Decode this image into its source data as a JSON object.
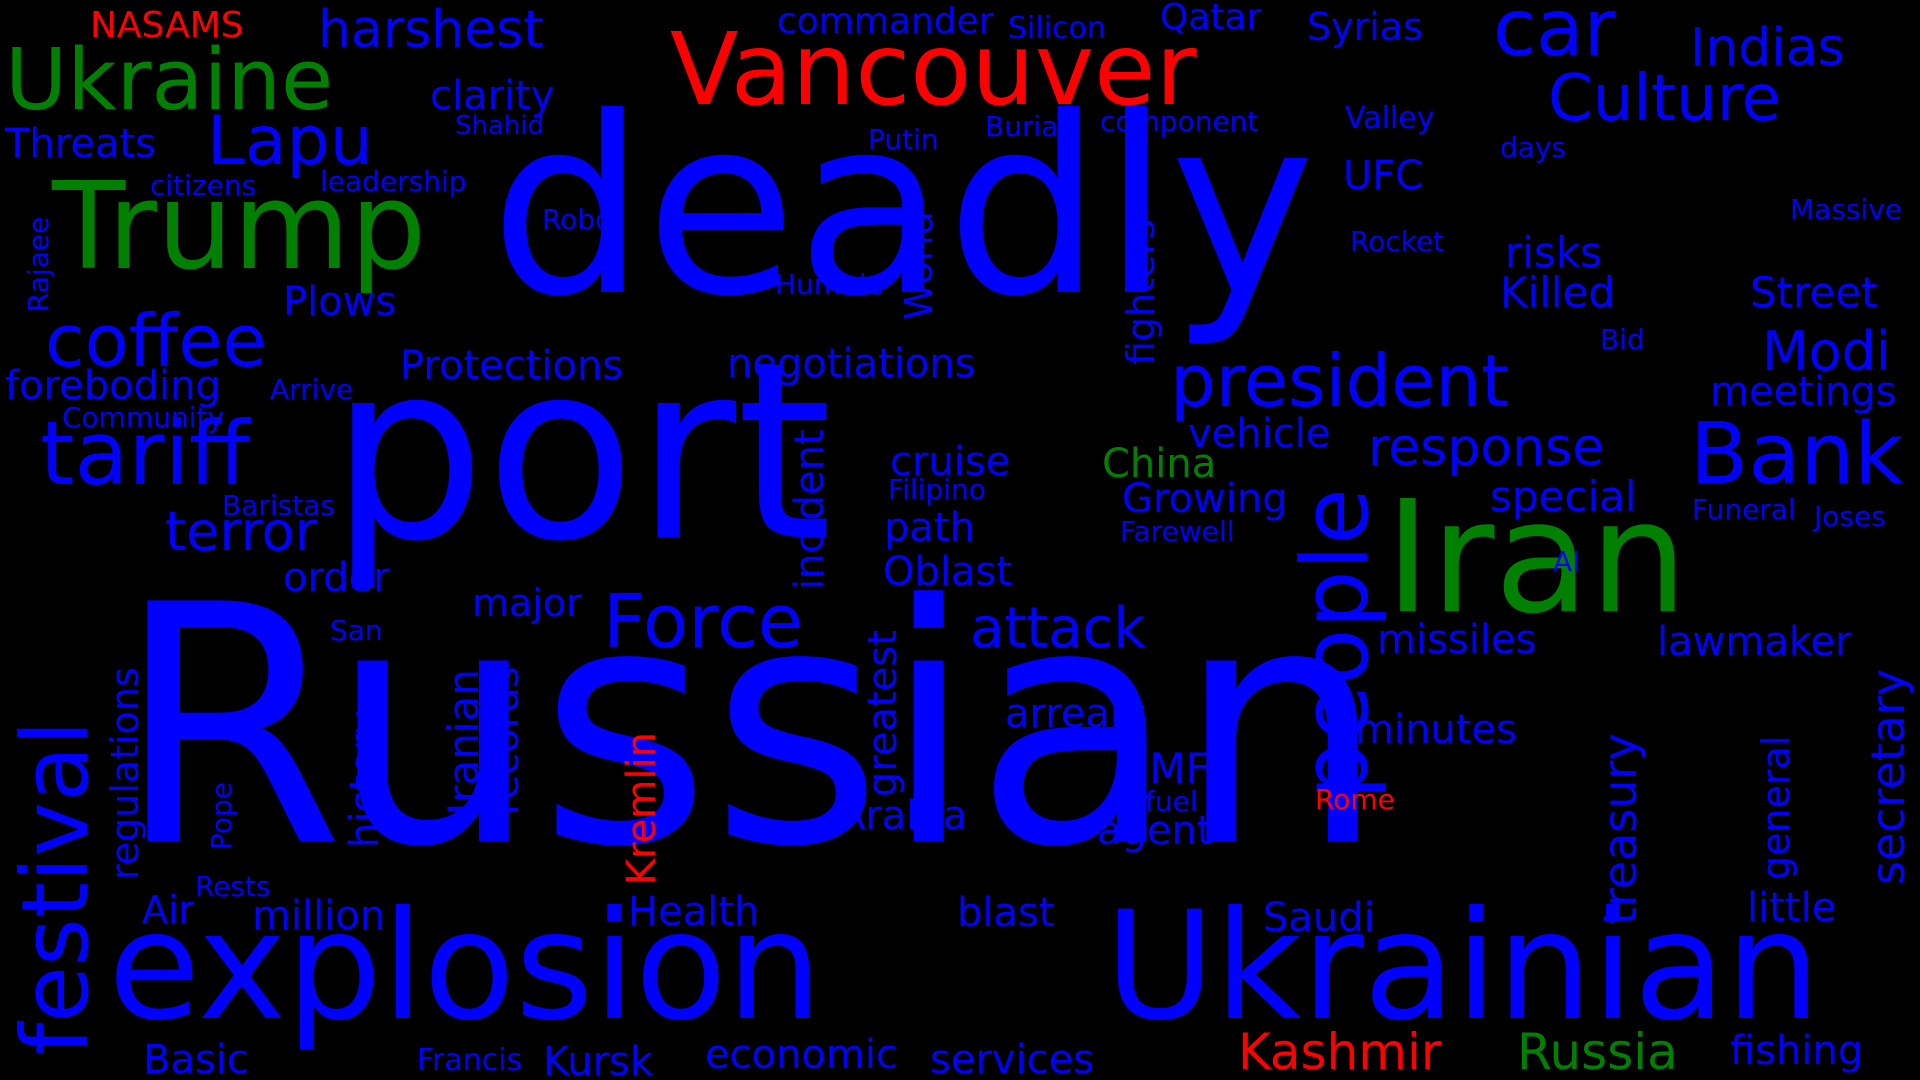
{
  "colors": {
    "background": "#000000",
    "blue": "#0000ff",
    "green": "#008000",
    "red": "#ff0000"
  },
  "words": {
    "russian": "Russian",
    "port": "port",
    "deadly": "deadly",
    "explosion": "explosion",
    "ukrainian": "Ukrainian",
    "iran": "Iran",
    "trump": "Trump",
    "vancouver": "Vancouver",
    "ukraine": "Ukraine",
    "festival": "festival",
    "tariff": "tariff",
    "coffee": "coffee",
    "car": "car",
    "culture": "Culture",
    "bank": "Bank",
    "president": "president",
    "people": "people",
    "force": "Force",
    "lapu": "Lapu",
    "kashmir": "Kashmir",
    "russia": "Russia",
    "nasams": "NASAMS",
    "harshest": "harshest",
    "commander": "commander",
    "silicon": "Silicon",
    "qatar": "Qatar",
    "syrias": "Syrias",
    "indias": "Indias",
    "clarity": "clarity",
    "threats": "Threats",
    "shahid": "Shahid",
    "putin": "Putin",
    "burial": "Burial",
    "component": "component",
    "valley": "Valley",
    "days": "days",
    "citizens": "citizens",
    "leadership": "leadership",
    "robot": "Robot",
    "ufc": "UFC",
    "massive": "Massive",
    "rajaee": "Rajaee",
    "rocket": "Rocket",
    "risks": "risks",
    "humble": "Humble",
    "world": "World",
    "fighters": "fighters",
    "plows": "Plows",
    "killed": "Killed",
    "street": "Street",
    "bid": "Bid",
    "modi": "Modi",
    "foreboding": "foreboding",
    "arrive": "Arrive",
    "protections": "Protections",
    "negotiations": "negotiations",
    "meetings": "meetings",
    "community": "Community",
    "vehicle": "vehicle",
    "response": "response",
    "china": "China",
    "cruise": "cruise",
    "baristas": "Baristas",
    "filipino": "Filipino",
    "growing": "Growing",
    "special": "special",
    "funeral": "Funeral",
    "joses": "Joses",
    "terror": "terror",
    "incident": "incident",
    "path": "path",
    "farewell": "Farewell",
    "ai": "AI",
    "order": "order",
    "oblast": "Oblast",
    "major": "major",
    "attack": "attack",
    "missiles": "missiles",
    "lawmaker": "lawmaker",
    "san": "San",
    "regulations": "regulations",
    "history": "history",
    "iranian": "Iranian",
    "records": "records",
    "greatest": "greatest",
    "treasury": "treasury",
    "secretary": "secretary",
    "arrears": "arrears",
    "minutes": "minutes",
    "imf": "IMF",
    "kremlin": "Kremlin",
    "general": "general",
    "pope": "Pope",
    "fuel": "fuel",
    "rome": "Rome",
    "arabia": "Arabia",
    "agent": "agent",
    "rests": "Rests",
    "air": "Air",
    "million": "million",
    "health": "Health",
    "blast": "blast",
    "saudi": "Saudi",
    "little": "little",
    "basic": "Basic",
    "francis": "Francis",
    "kursk": "Kursk",
    "economic": "economic",
    "services": "services",
    "fishing": "fishing"
  }
}
